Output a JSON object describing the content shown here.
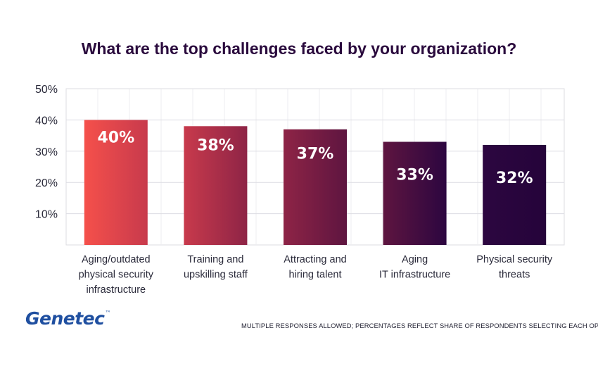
{
  "chart_data": {
    "type": "bar",
    "title": "What are the top challenges faced by your organization?",
    "categories": [
      [
        "Aging/outdated",
        "physical security",
        "infrastructure"
      ],
      [
        "Training and",
        "upskilling staff"
      ],
      [
        "Attracting and",
        "hiring talent"
      ],
      [
        "Aging",
        "IT infrastructure"
      ],
      [
        "Physical security",
        "threats"
      ]
    ],
    "values": [
      40,
      38,
      37,
      33,
      32
    ],
    "value_labels": [
      "40%",
      "38%",
      "37%",
      "33%",
      "32%"
    ],
    "ylim": [
      0,
      50
    ],
    "yticks": [
      10,
      20,
      30,
      40,
      50
    ],
    "ytick_labels": [
      "10%",
      "20%",
      "30%",
      "40%",
      "50%"
    ],
    "grid": true,
    "bar_colors": [
      "#f5504b",
      "#c83a4c",
      "#8e2446",
      "#5e1540",
      "#2c0640"
    ]
  },
  "brand": {
    "logo_text": "Genetec",
    "trademark": "™",
    "color": "#1f4fa0"
  },
  "footnote": "MULTIPLE RESPONSES ALLOWED; PERCENTAGES REFLECT SHARE OF RESPONDENTS SELECTING EACH OPTION"
}
